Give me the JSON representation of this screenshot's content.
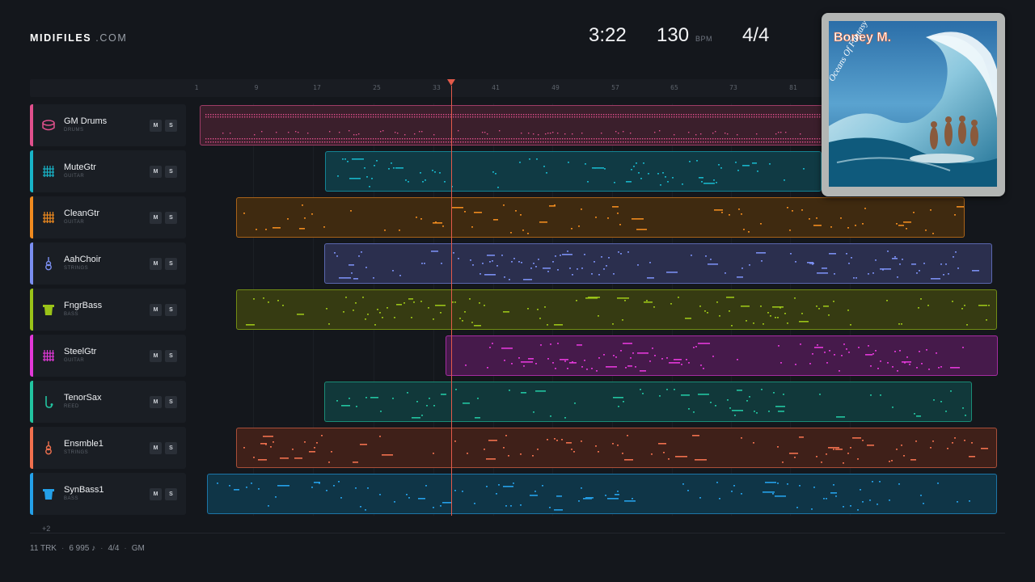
{
  "brand": {
    "name": "MIDIFILES",
    "suffix": ".COM"
  },
  "stats": {
    "duration": "3:22",
    "tempo": "130",
    "tempo_unit": "BPM",
    "time_signature": "4/4"
  },
  "ruler": {
    "bars": [
      "1",
      "9",
      "17",
      "25",
      "33",
      "41",
      "49",
      "57",
      "65",
      "73",
      "81"
    ]
  },
  "album": {
    "artist": "Boney M.",
    "title": "Oceans Of Fantasy"
  },
  "tracks": [
    {
      "name": "GM Drums",
      "category": "DRUMS",
      "color": "#e0508c",
      "icon": "drum-icon",
      "mute": "M",
      "solo": "S"
    },
    {
      "name": "MuteGtr",
      "category": "GUITAR",
      "color": "#18b4c8",
      "icon": "guitar-fretboard-icon",
      "mute": "M",
      "solo": "S"
    },
    {
      "name": "CleanGtr",
      "category": "GUITAR",
      "color": "#ef8a1f",
      "icon": "guitar-fretboard-icon",
      "mute": "M",
      "solo": "S"
    },
    {
      "name": "AahChoir",
      "category": "STRINGS",
      "color": "#7a8ef0",
      "icon": "violin-icon",
      "mute": "M",
      "solo": "S"
    },
    {
      "name": "FngrBass",
      "category": "BASS",
      "color": "#9ac318",
      "icon": "bass-amp-icon",
      "mute": "M",
      "solo": "S"
    },
    {
      "name": "SteelGtr",
      "category": "GUITAR",
      "color": "#e238d8",
      "icon": "guitar-fretboard-icon",
      "mute": "M",
      "solo": "S"
    },
    {
      "name": "TenorSax",
      "category": "REED",
      "color": "#22c4a0",
      "icon": "saxophone-icon",
      "mute": "M",
      "solo": "S"
    },
    {
      "name": "Ensmble1",
      "category": "STRINGS",
      "color": "#f0704e",
      "icon": "violin-icon",
      "mute": "M",
      "solo": "S"
    },
    {
      "name": "SynBass1",
      "category": "BASS",
      "color": "#24a0e8",
      "icon": "bass-amp-icon",
      "mute": "M",
      "solo": "S"
    }
  ],
  "more_tracks": "+2",
  "footer": {
    "tracks": "11 TRK",
    "notes": "6 995 ♪",
    "signature": "4/4",
    "format": "GM"
  }
}
